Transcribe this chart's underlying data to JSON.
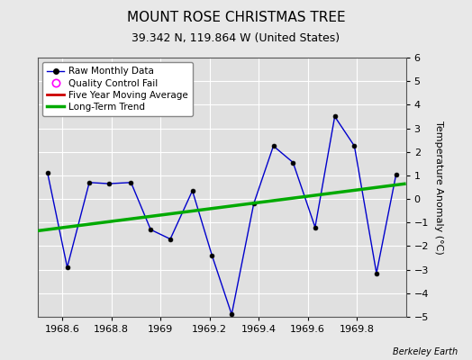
{
  "title": "MOUNT ROSE CHRISTMAS TREE",
  "subtitle": "39.342 N, 119.864 W (United States)",
  "ylabel": "Temperature Anomaly (°C)",
  "credit": "Berkeley Earth",
  "xlim": [
    1968.5,
    1970.0
  ],
  "ylim": [
    -5,
    6
  ],
  "yticks": [
    -5,
    -4,
    -3,
    -2,
    -1,
    0,
    1,
    2,
    3,
    4,
    5,
    6
  ],
  "xticks": [
    1968.6,
    1968.8,
    1969.0,
    1969.2,
    1969.4,
    1969.6,
    1969.8
  ],
  "xticklabels": [
    "1968.6",
    "1968.8",
    "1969",
    "1969.2",
    "1969.4",
    "1969.6",
    "1969.8"
  ],
  "raw_x": [
    1968.54,
    1968.62,
    1968.71,
    1968.79,
    1968.88,
    1968.96,
    1969.04,
    1969.13,
    1969.21,
    1969.29,
    1969.38,
    1969.46,
    1969.54,
    1969.63,
    1969.71,
    1969.79,
    1969.88,
    1969.96
  ],
  "raw_y": [
    1.1,
    -2.9,
    0.7,
    0.65,
    0.7,
    -1.3,
    -1.7,
    0.35,
    -2.4,
    -4.9,
    -0.2,
    2.25,
    1.55,
    -1.2,
    3.5,
    2.25,
    -3.15,
    1.05
  ],
  "trend_x": [
    1968.5,
    1970.0
  ],
  "trend_y": [
    -1.35,
    0.65
  ],
  "bg_color": "#e8e8e8",
  "plot_bg_color": "#e0e0e0",
  "grid_color": "#ffffff",
  "raw_line_color": "#0000cc",
  "raw_marker_color": "#000000",
  "trend_color": "#00aa00",
  "moving_avg_color": "#cc0000",
  "legend_qc_color": "#ff00ff",
  "title_fontsize": 11,
  "subtitle_fontsize": 9,
  "axis_label_fontsize": 8,
  "tick_fontsize": 8,
  "credit_fontsize": 7
}
